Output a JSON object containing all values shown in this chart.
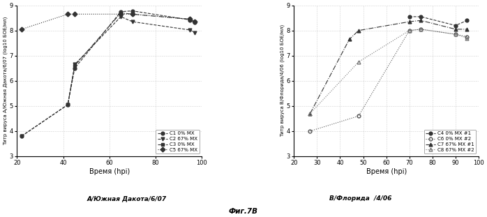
{
  "left": {
    "ylabel": "Титр вируса А/Южная Дакота/6/07 (log10 БОЕ/мл)",
    "xlabel": "Время (hpi)",
    "xlim": [
      20,
      100
    ],
    "ylim": [
      3,
      9
    ],
    "yticks": [
      3,
      4,
      5,
      6,
      7,
      8,
      9
    ],
    "xticks": [
      20,
      40,
      60,
      80,
      100
    ],
    "series": [
      {
        "label": "C1 0% MX",
        "x": [
          22,
          42,
          45,
          65,
          70,
          95,
          97
        ],
        "y": [
          3.8,
          5.05,
          6.5,
          8.75,
          8.78,
          8.42,
          8.32
        ],
        "marker": "o",
        "fillstyle": "full",
        "linestyle": "--",
        "color": "#333333"
      },
      {
        "label": "C2 67% MX",
        "x": [
          22,
          42,
          45,
          65,
          70,
          95,
          97
        ],
        "y": [
          3.8,
          5.05,
          6.65,
          8.55,
          8.35,
          8.02,
          7.92
        ],
        "marker": "v",
        "fillstyle": "full",
        "linestyle": "--",
        "color": "#333333"
      },
      {
        "label": "C3 0% MX",
        "x": [
          42,
          45,
          65,
          70,
          95,
          97
        ],
        "y": [
          5.05,
          6.6,
          8.7,
          8.65,
          8.45,
          8.35
        ],
        "marker": "s",
        "fillstyle": "full",
        "linestyle": "-.",
        "color": "#333333"
      },
      {
        "label": "C5 67% MX",
        "x": [
          22,
          42,
          45,
          65,
          70,
          95,
          97
        ],
        "y": [
          8.05,
          8.65,
          8.65,
          8.65,
          8.65,
          8.45,
          8.35
        ],
        "marker": "D",
        "fillstyle": "full",
        "linestyle": ":",
        "color": "#333333"
      }
    ],
    "legend_loc": "lower right"
  },
  "right": {
    "ylabel": "Титр вируса В/Флорида/4/06 (log10 БОЕ/мл)",
    "xlabel": "Время (hpi)",
    "xlim": [
      20,
      100
    ],
    "ylim": [
      3,
      9
    ],
    "yticks": [
      3,
      4,
      5,
      6,
      7,
      8,
      9
    ],
    "xticks": [
      20,
      30,
      40,
      50,
      60,
      70,
      80,
      90,
      100
    ],
    "series": [
      {
        "label": "C4 0% MX #1",
        "x": [
          70,
          75,
          90,
          95
        ],
        "y": [
          8.55,
          8.55,
          8.2,
          8.4
        ],
        "marker": "o",
        "fillstyle": "full",
        "linestyle": "--",
        "color": "#333333"
      },
      {
        "label": "C6 0% MX #2",
        "x": [
          27,
          48,
          70,
          75,
          90,
          95
        ],
        "y": [
          4.0,
          4.6,
          8.0,
          8.05,
          7.85,
          7.75
        ],
        "marker": "o",
        "fillstyle": "none",
        "linestyle": ":",
        "color": "#555555"
      },
      {
        "label": "C7 67% MX #1",
        "x": [
          27,
          44,
          48,
          70,
          75,
          90,
          95
        ],
        "y": [
          4.7,
          7.65,
          8.0,
          8.35,
          8.4,
          8.05,
          8.05
        ],
        "marker": "^",
        "fillstyle": "full",
        "linestyle": "-.",
        "color": "#333333"
      },
      {
        "label": "C8 67% MX #2",
        "x": [
          27,
          48,
          70,
          75,
          90,
          95
        ],
        "y": [
          4.7,
          6.75,
          8.0,
          8.05,
          7.85,
          7.7
        ],
        "marker": "^",
        "fillstyle": "none",
        "linestyle": ":",
        "color": "#777777"
      }
    ],
    "legend_loc": "lower right"
  },
  "left_bottom_label": "А/Южная Дакота/6/07",
  "right_bottom_label": "В/Флорида  /4/06",
  "fig_label": "Фиг.7B",
  "background_color": "#ffffff"
}
